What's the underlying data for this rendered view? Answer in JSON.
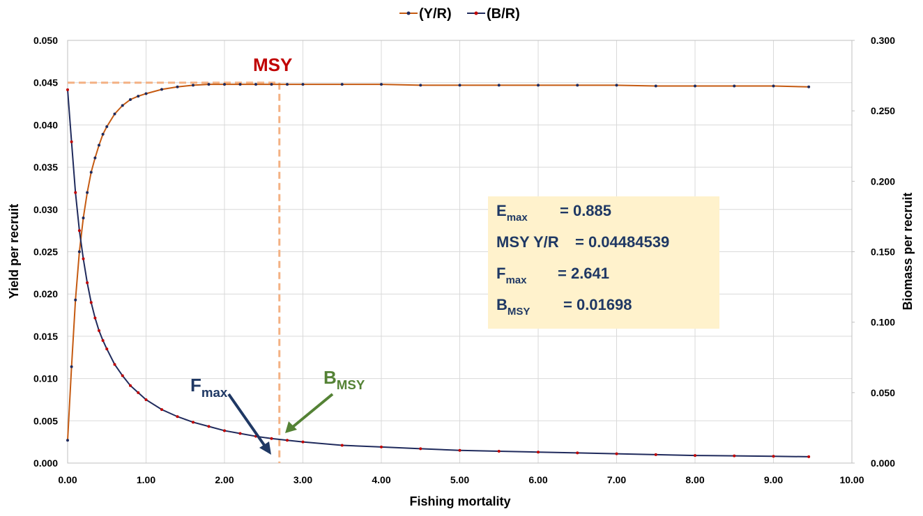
{
  "chart_data": {
    "type": "line",
    "x": [
      0,
      0.05,
      0.1,
      0.15,
      0.2,
      0.25,
      0.3,
      0.35,
      0.4,
      0.45,
      0.5,
      0.6,
      0.7,
      0.8,
      0.9,
      1.0,
      1.2,
      1.4,
      1.6,
      1.8,
      2.0,
      2.2,
      2.4,
      2.6,
      2.8,
      3.0,
      3.5,
      4.0,
      4.5,
      5.0,
      5.5,
      6.0,
      6.5,
      7.0,
      7.5,
      8.0,
      8.5,
      9.0,
      9.45
    ],
    "series": [
      {
        "name": "(Y/R)",
        "color": "#c55a11",
        "marker_color": "#1f2a5c",
        "values": [
          0.0027,
          0.0114,
          0.0193,
          0.025,
          0.029,
          0.032,
          0.0344,
          0.0361,
          0.0376,
          0.0389,
          0.0398,
          0.0413,
          0.0423,
          0.043,
          0.0434,
          0.0437,
          0.0442,
          0.0445,
          0.0447,
          0.0448,
          0.0448,
          0.0448,
          0.0448,
          0.0448,
          0.0448,
          0.0448,
          0.0448,
          0.0448,
          0.0447,
          0.0447,
          0.0447,
          0.0447,
          0.0447,
          0.0447,
          0.0446,
          0.0446,
          0.0446,
          0.0446,
          0.0445
        ]
      },
      {
        "name": "(B/R)",
        "color": "#1f2a5c",
        "marker_color": "#c00000",
        "axis": "y2",
        "values": [
          0.265,
          0.228,
          0.192,
          0.165,
          0.145,
          0.128,
          0.114,
          0.103,
          0.094,
          0.087,
          0.081,
          0.07,
          0.062,
          0.055,
          0.05,
          0.045,
          0.038,
          0.033,
          0.029,
          0.026,
          0.023,
          0.021,
          0.019,
          0.0174,
          0.0162,
          0.015,
          0.0126,
          0.0114,
          0.0102,
          0.009,
          0.0084,
          0.0078,
          0.0072,
          0.0066,
          0.006,
          0.0054,
          0.0051,
          0.0048,
          0.0045
        ]
      }
    ],
    "xlabel": "Fishing mortality",
    "ylabel": "Yield per recruit",
    "y2label": "Biomass per recruit",
    "xlim": [
      0,
      10
    ],
    "xticks": [
      {
        "value": 0,
        "label": "0.00"
      },
      {
        "value": 1,
        "label": "1.00"
      },
      {
        "value": 2,
        "label": "2.00"
      },
      {
        "value": 3,
        "label": "3.00"
      },
      {
        "value": 4,
        "label": "4.00"
      },
      {
        "value": 5,
        "label": "5.00"
      },
      {
        "value": 6,
        "label": "6.00"
      },
      {
        "value": 7,
        "label": "7.00"
      },
      {
        "value": 8,
        "label": "8.00"
      },
      {
        "value": 9,
        "label": "9.00"
      },
      {
        "value": 10,
        "label": "10.00"
      }
    ],
    "ylim": [
      0,
      0.05
    ],
    "yticks": [
      {
        "value": 0,
        "label": "0.000"
      },
      {
        "value": 0.005,
        "label": "0.005"
      },
      {
        "value": 0.01,
        "label": "0.010"
      },
      {
        "value": 0.015,
        "label": "0.015"
      },
      {
        "value": 0.02,
        "label": "0.020"
      },
      {
        "value": 0.025,
        "label": "0.025"
      },
      {
        "value": 0.03,
        "label": "0.030"
      },
      {
        "value": 0.035,
        "label": "0.035"
      },
      {
        "value": 0.04,
        "label": "0.040"
      },
      {
        "value": 0.045,
        "label": "0.045"
      },
      {
        "value": 0.05,
        "label": "0.050"
      }
    ],
    "y2lim": [
      0,
      0.3
    ],
    "y2ticks": [
      {
        "value": 0,
        "label": "0.000"
      },
      {
        "value": 0.05,
        "label": "0.050"
      },
      {
        "value": 0.1,
        "label": "0.100"
      },
      {
        "value": 0.15,
        "label": "0.150"
      },
      {
        "value": 0.2,
        "label": "0.200"
      },
      {
        "value": 0.25,
        "label": "0.250"
      },
      {
        "value": 0.3,
        "label": "0.300"
      }
    ],
    "grid": true,
    "legend": "top",
    "reference_lines": {
      "x": 2.7,
      "y": 0.045,
      "color": "#f4b183"
    },
    "annotations": {
      "msy": "MSY",
      "fmax": {
        "main": "F",
        "sub": "max"
      },
      "bmsy": {
        "main": "B",
        "sub": "MSY"
      },
      "info": [
        {
          "main": "E",
          "sub": "max",
          "value": "= 0.885"
        },
        {
          "main": "MSY Y/R",
          "value": "= 0.04484539"
        },
        {
          "main": "F",
          "sub": "max",
          "value": "= 2.641"
        },
        {
          "main": "B",
          "sub": "MSY",
          "value": "= 0.01698"
        }
      ]
    }
  }
}
